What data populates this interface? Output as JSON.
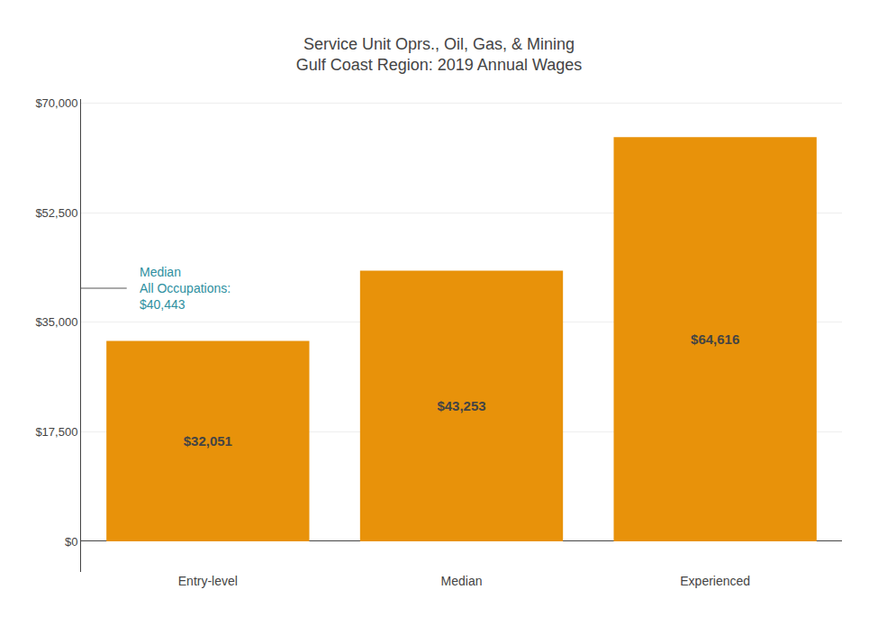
{
  "chart_data": {
    "type": "bar",
    "title": "Service Unit Oprs., Oil, Gas, & Mining",
    "subtitle": "Gulf Coast Region: 2019 Annual Wages",
    "categories": [
      "Entry-level",
      "Median",
      "Experienced"
    ],
    "values": [
      32051,
      43253,
      64616
    ],
    "value_labels": [
      "$32,051",
      "$43,253",
      "$64,616"
    ],
    "data_labels": true,
    "color": "#E8920A",
    "ylim": [
      -4900,
      70700
    ],
    "yticks": [
      {
        "value": 0,
        "label": "$0"
      },
      {
        "value": 17500,
        "label": "$17,500"
      },
      {
        "value": 35000,
        "label": "$35,000"
      },
      {
        "value": 52500,
        "label": "$52,500"
      },
      {
        "value": 70000,
        "label": "$70,000"
      }
    ],
    "grid": true,
    "median_line": {
      "value": 40443,
      "label_lines": [
        "Median",
        "All Occupations:",
        "$40,443"
      ],
      "color": "#AAAAAA",
      "label_color": "#2E8FA0"
    }
  }
}
